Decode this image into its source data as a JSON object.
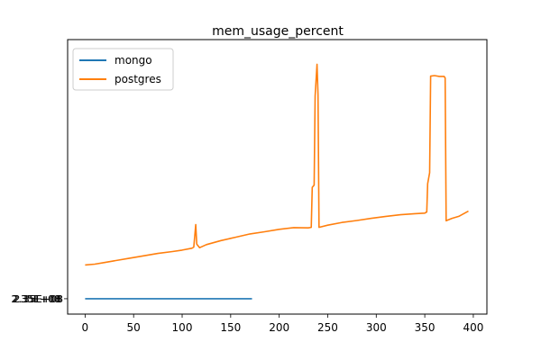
{
  "chart_data": {
    "type": "line",
    "title": "mem_usage_percent",
    "xlabel": "",
    "ylabel": "",
    "xlim": [
      -18,
      414
    ],
    "ylim": [
      0,
      100
    ],
    "x_ticks": [
      0,
      50,
      100,
      150,
      200,
      250,
      300,
      350,
      400
    ],
    "legend": {
      "position": "top-left"
    },
    "grid": false,
    "y_tick_overlap_label": "2.35E+08",
    "colors": {
      "mongo": "#1f77b4",
      "postgres": "#ff7f0e"
    },
    "series": [
      {
        "name": "mongo",
        "points": [
          [
            0,
            5.6
          ],
          [
            172,
            5.6
          ]
        ]
      },
      {
        "name": "postgres",
        "points": [
          [
            0,
            17.9
          ],
          [
            10,
            18.2
          ],
          [
            20,
            18.8
          ],
          [
            30,
            19.4
          ],
          [
            45,
            20.3
          ],
          [
            60,
            21.2
          ],
          [
            75,
            22.1
          ],
          [
            90,
            22.8
          ],
          [
            100,
            23.3
          ],
          [
            110,
            24.0
          ],
          [
            112,
            24.4
          ],
          [
            114,
            32.6
          ],
          [
            115,
            25.5
          ],
          [
            118,
            24.2
          ],
          [
            125,
            25.3
          ],
          [
            140,
            26.8
          ],
          [
            155,
            28.0
          ],
          [
            170,
            29.2
          ],
          [
            185,
            30.0
          ],
          [
            200,
            30.9
          ],
          [
            215,
            31.5
          ],
          [
            230,
            31.4
          ],
          [
            233,
            31.6
          ],
          [
            234,
            46.2
          ],
          [
            236,
            47.0
          ],
          [
            237,
            79.5
          ],
          [
            239,
            91.0
          ],
          [
            240,
            80.0
          ],
          [
            241,
            31.6
          ],
          [
            250,
            32.4
          ],
          [
            265,
            33.4
          ],
          [
            280,
            34.1
          ],
          [
            295,
            34.9
          ],
          [
            310,
            35.6
          ],
          [
            325,
            36.2
          ],
          [
            340,
            36.6
          ],
          [
            350,
            36.8
          ],
          [
            352,
            37.2
          ],
          [
            353,
            47.5
          ],
          [
            355,
            51.5
          ],
          [
            356,
            86.7
          ],
          [
            360,
            86.9
          ],
          [
            365,
            86.6
          ],
          [
            370,
            86.6
          ],
          [
            371,
            86.0
          ],
          [
            372,
            34.0
          ],
          [
            378,
            34.9
          ],
          [
            385,
            35.6
          ],
          [
            395,
            37.5
          ]
        ]
      }
    ]
  }
}
